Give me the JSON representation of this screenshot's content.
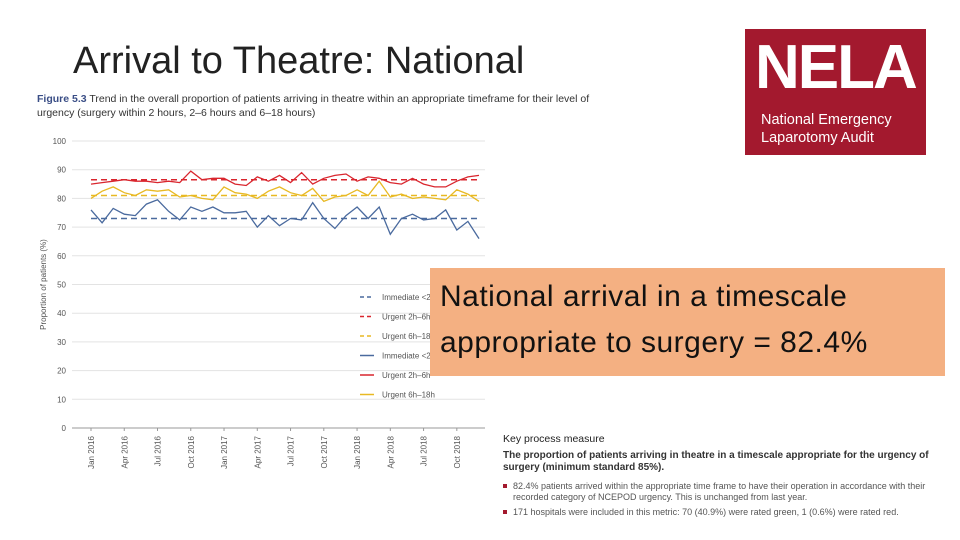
{
  "slide": {
    "title": "Arrival to Theatre: National"
  },
  "figure": {
    "label": "Figure 5.3",
    "caption": "Trend in the overall proportion of patients arriving in theatre within an appropriate timeframe for their level of urgency (surgery within 2 hours, 2–6 hours and 6–18 hours)"
  },
  "logo": {
    "text": "NELA",
    "line1": "National Emergency",
    "line2": "Laparotomy Audit",
    "color": "#a3192e"
  },
  "callout": {
    "line1": "National arrival in a timescale",
    "line2": "appropriate to surgery = 82.4%",
    "color": "#f4b082"
  },
  "key_measure": {
    "heading": "Key process measure",
    "subheading": "The proportion of patients arriving in theatre in a timescale appropriate for the urgency of surgery (minimum standard 85%).",
    "bullets": [
      "82.4% patients arrived within the appropriate time frame to have their operation in accordance with their recorded category of NCEPOD urgency. This is unchanged from last year.",
      "171 hospitals were included in this metric: 70 (40.9%) were rated green, 1 (0.6%) were rated red."
    ]
  },
  "chart_data": {
    "type": "line",
    "ylabel": "Proportion of patients (%)",
    "ylim": [
      0,
      100
    ],
    "yticks": [
      0,
      10,
      20,
      30,
      40,
      50,
      60,
      70,
      80,
      90,
      100
    ],
    "x_labels": [
      "Jan 2016",
      "Apr 2016",
      "Jul 2016",
      "Oct 2016",
      "Jan 2017",
      "Apr 2017",
      "Jul 2017",
      "Oct 2017",
      "Jan 2018",
      "Apr 2018",
      "Jul 2018",
      "Oct 2018"
    ],
    "n_points": 36,
    "series": [
      {
        "name": "Immediate <2",
        "style": "dashed",
        "color": "#4a6a9e",
        "constant": 73
      },
      {
        "name": "Urgent 2h–6h",
        "style": "dashed",
        "color": "#d9262e",
        "constant": 86.5
      },
      {
        "name": "Urgent 6h–18",
        "style": "dashed",
        "color": "#e8b923",
        "constant": 81
      },
      {
        "name": "Immediate <2",
        "style": "solid",
        "color": "#4a6a9e",
        "values": [
          76,
          71.5,
          76.5,
          74.5,
          74,
          78,
          79.5,
          75.5,
          72.5,
          77,
          75.5,
          77,
          75,
          75,
          75.5,
          70,
          74,
          70.5,
          73,
          72.5,
          78.5,
          73,
          69.5,
          74,
          77,
          73,
          77,
          67.5,
          73,
          74.5,
          72.5,
          73,
          76,
          69,
          72,
          66
        ]
      },
      {
        "name": "Urgent 2h–6h",
        "style": "solid",
        "color": "#d9262e",
        "values": [
          85,
          85.5,
          86,
          86.5,
          86,
          86,
          85.5,
          86,
          85.5,
          89.5,
          86.5,
          87,
          87,
          85,
          84.5,
          87.5,
          86,
          88,
          85.5,
          89,
          85,
          87,
          88,
          88.5,
          86,
          87.5,
          87,
          85.5,
          85,
          87,
          85,
          84,
          84,
          86,
          87.5,
          88
        ]
      },
      {
        "name": "Urgent 6h–18h",
        "style": "solid",
        "color": "#e8b923",
        "values": [
          80,
          82.5,
          84,
          82,
          81,
          83,
          82.5,
          83,
          80.5,
          81,
          80,
          79.5,
          84,
          82,
          81.5,
          80,
          82.5,
          84,
          82,
          81,
          83.5,
          79,
          80.5,
          81,
          83,
          81,
          86,
          80.5,
          81.5,
          80,
          80.5,
          80,
          79.5,
          83,
          81.5,
          79
        ]
      }
    ]
  }
}
